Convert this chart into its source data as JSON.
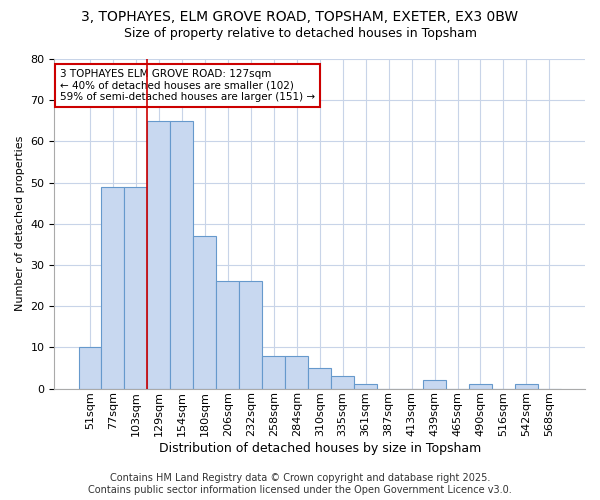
{
  "title_line1": "3, TOPHAYES, ELM GROVE ROAD, TOPSHAM, EXETER, EX3 0BW",
  "title_line2": "Size of property relative to detached houses in Topsham",
  "categories": [
    "51sqm",
    "77sqm",
    "103sqm",
    "129sqm",
    "154sqm",
    "180sqm",
    "206sqm",
    "232sqm",
    "258sqm",
    "284sqm",
    "310sqm",
    "335sqm",
    "361sqm",
    "387sqm",
    "413sqm",
    "439sqm",
    "465sqm",
    "490sqm",
    "516sqm",
    "542sqm",
    "568sqm"
  ],
  "values": [
    10,
    49,
    49,
    65,
    65,
    37,
    26,
    26,
    8,
    8,
    5,
    3,
    1,
    0,
    0,
    2,
    0,
    1,
    0,
    1,
    0
  ],
  "bar_color": "#c8d8f0",
  "bar_edge_color": "#6699cc",
  "ylabel": "Number of detached properties",
  "xlabel": "Distribution of detached houses by size in Topsham",
  "ylim": [
    0,
    80
  ],
  "yticks": [
    0,
    10,
    20,
    30,
    40,
    50,
    60,
    70,
    80
  ],
  "vline_index": 3,
  "vline_color": "#cc0000",
  "annotation_text": "3 TOPHAYES ELM GROVE ROAD: 127sqm\n← 40% of detached houses are smaller (102)\n59% of semi-detached houses are larger (151) →",
  "annotation_box_color": "#ffffff",
  "annotation_box_edge": "#cc0000",
  "grid_color": "#c8d4e8",
  "background_color": "#ffffff",
  "plot_bg_color": "#ffffff",
  "footer_line1": "Contains HM Land Registry data © Crown copyright and database right 2025.",
  "footer_line2": "Contains public sector information licensed under the Open Government Licence v3.0.",
  "title_fontsize": 10,
  "subtitle_fontsize": 9,
  "ylabel_fontsize": 8,
  "xlabel_fontsize": 9,
  "tick_fontsize": 8,
  "footer_fontsize": 7
}
